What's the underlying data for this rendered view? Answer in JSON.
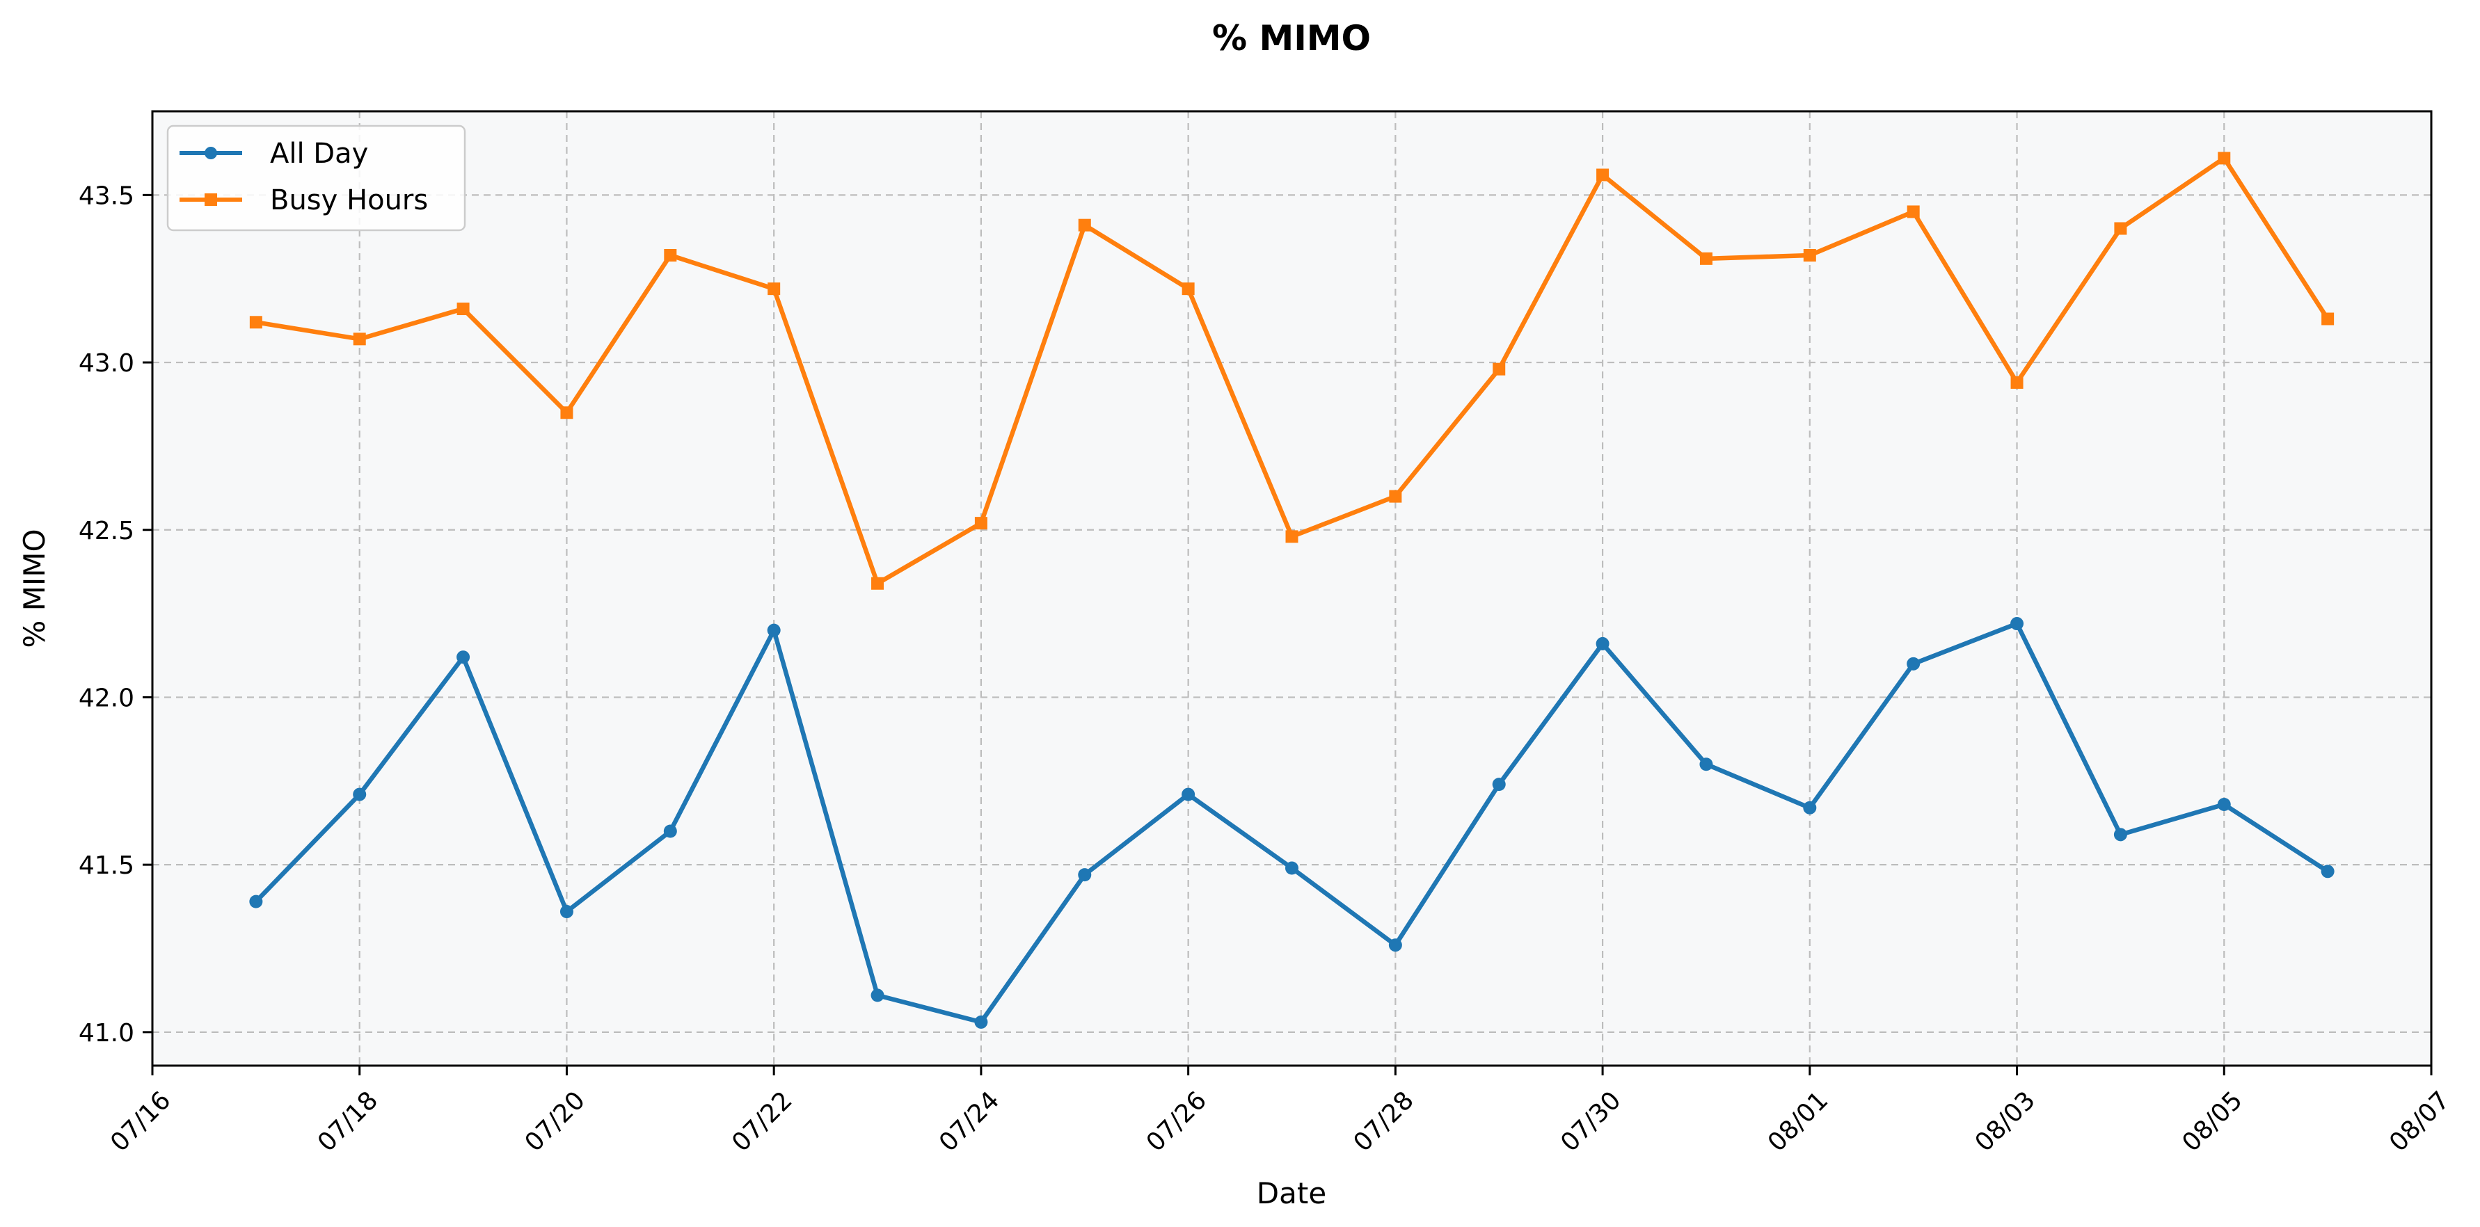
{
  "chart_data": {
    "type": "line",
    "title": "% MIMO",
    "xlabel": "Date",
    "ylabel": "% MIMO",
    "x": [
      "07/17",
      "07/18",
      "07/19",
      "07/20",
      "07/21",
      "07/22",
      "07/23",
      "07/24",
      "07/25",
      "07/26",
      "07/27",
      "07/28",
      "07/29",
      "07/30",
      "07/31",
      "08/01",
      "08/02",
      "08/03",
      "08/04",
      "08/05",
      "08/06"
    ],
    "series": [
      {
        "name": "All Day",
        "marker": "circle",
        "color": "#1f77b4",
        "values": [
          41.39,
          41.71,
          42.12,
          41.36,
          41.6,
          42.2,
          41.11,
          41.03,
          41.47,
          41.71,
          41.49,
          41.26,
          41.74,
          42.16,
          41.8,
          41.67,
          42.1,
          42.22,
          41.59,
          41.68,
          41.48
        ]
      },
      {
        "name": "Busy Hours",
        "marker": "square",
        "color": "#ff7f0e",
        "values": [
          43.12,
          43.07,
          43.16,
          42.85,
          43.32,
          43.22,
          42.34,
          42.52,
          43.41,
          43.22,
          42.48,
          42.6,
          42.98,
          43.56,
          43.31,
          43.32,
          43.45,
          42.94,
          43.4,
          43.61,
          43.13
        ]
      }
    ],
    "xticks": [
      "07/16",
      "07/18",
      "07/20",
      "07/22",
      "07/24",
      "07/26",
      "07/28",
      "07/30",
      "08/01",
      "08/03",
      "08/05",
      "08/07"
    ],
    "xlim": [
      "07/16",
      "08/07"
    ],
    "yticks": [
      "41.0",
      "41.5",
      "42.0",
      "42.5",
      "43.0",
      "43.5"
    ],
    "ylim": [
      40.9,
      43.75
    ],
    "grid": true,
    "legend": "upper-left",
    "plot_background": "#f7f8f9"
  }
}
